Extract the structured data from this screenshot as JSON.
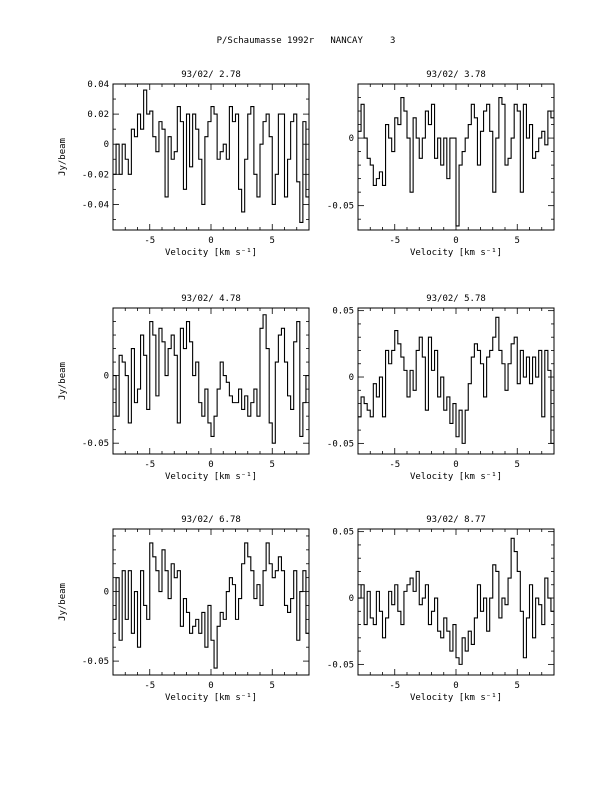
{
  "page": {
    "title": "P/Schaumasse 1992r   NANCAY     3"
  },
  "chart_data": [
    {
      "type": "line",
      "title": "93/02/ 2.78",
      "xlabel": "Velocity [km s⁻¹]",
      "ylabel": "Jy/beam",
      "xlim": [
        -8,
        8
      ],
      "ylim": [
        -0.057,
        0.04
      ],
      "xticks": [
        "-5",
        "0",
        "5"
      ],
      "yticks": [
        "0.04",
        "0.02",
        "0",
        "-0.02",
        "-0.04"
      ],
      "ytick_values": [
        0.04,
        0.02,
        0,
        -0.02,
        -0.04
      ],
      "grid": false,
      "series": [
        {
          "step": true,
          "x": [
            -8,
            -7.75,
            -7.5,
            -7.25,
            -7,
            -6.75,
            -6.5,
            -6.25,
            -6,
            -5.75,
            -5.5,
            -5.25,
            -5,
            -4.75,
            -4.5,
            -4.25,
            -4,
            -3.75,
            -3.5,
            -3.25,
            -3,
            -2.75,
            -2.5,
            -2.25,
            -2,
            -1.75,
            -1.5,
            -1.25,
            -1,
            -0.75,
            -0.5,
            -0.25,
            0,
            0.25,
            0.5,
            0.75,
            1,
            1.25,
            1.5,
            1.75,
            2,
            2.25,
            2.5,
            2.75,
            3,
            3.25,
            3.5,
            3.75,
            4,
            4.25,
            4.5,
            4.75,
            5,
            5.25,
            5.5,
            5.75,
            6,
            6.25,
            6.5,
            6.75,
            7,
            7.25,
            7.5,
            7.75
          ],
          "y": [
            -0.02,
            0,
            -0.02,
            0,
            -0.01,
            -0.02,
            0.01,
            0.005,
            0.02,
            0.01,
            0.036,
            0.02,
            0.022,
            0.005,
            -0.005,
            0.015,
            0.01,
            -0.035,
            0.005,
            -0.01,
            -0.005,
            0.025,
            0.015,
            -0.03,
            0.02,
            -0.015,
            0.02,
            0.01,
            -0.01,
            -0.04,
            0.005,
            0.015,
            0.025,
            0.02,
            -0.01,
            -0.005,
            0.0,
            -0.01,
            0.025,
            0.015,
            0.02,
            -0.03,
            -0.045,
            -0.01,
            0.02,
            0.025,
            -0.02,
            -0.035,
            0.0,
            0.015,
            0.02,
            0.005,
            -0.04,
            -0.02,
            0.02,
            0.02,
            -0.035,
            -0.01,
            0.015,
            0.02,
            -0.025,
            -0.052,
            0.015,
            -0.035
          ]
        }
      ]
    },
    {
      "type": "line",
      "title": "93/02/ 3.78",
      "xlabel": "Velocity [km s⁻¹]",
      "ylabel": "",
      "xlim": [
        -8,
        8
      ],
      "ylim": [
        -0.068,
        0.04
      ],
      "xticks": [
        "-5",
        "0",
        "5"
      ],
      "yticks": [
        "0",
        "-0.05"
      ],
      "ytick_values": [
        0,
        -0.05
      ],
      "grid": false,
      "series": [
        {
          "step": true,
          "x": [
            -8,
            -7.75,
            -7.5,
            -7.25,
            -7,
            -6.75,
            -6.5,
            -6.25,
            -6,
            -5.75,
            -5.5,
            -5.25,
            -5,
            -4.75,
            -4.5,
            -4.25,
            -4,
            -3.75,
            -3.5,
            -3.25,
            -3,
            -2.75,
            -2.5,
            -2.25,
            -2,
            -1.75,
            -1.5,
            -1.25,
            -1,
            -0.75,
            -0.5,
            -0.25,
            0,
            0.25,
            0.5,
            0.75,
            1,
            1.25,
            1.5,
            1.75,
            2,
            2.25,
            2.5,
            2.75,
            3,
            3.25,
            3.5,
            3.75,
            4,
            4.25,
            4.5,
            4.75,
            5,
            5.25,
            5.5,
            5.75,
            6,
            6.25,
            6.5,
            6.75,
            7,
            7.25,
            7.5,
            7.75
          ],
          "y": [
            0.005,
            0.025,
            0.0,
            -0.015,
            -0.02,
            -0.035,
            -0.03,
            -0.025,
            -0.035,
            0.01,
            0.0,
            -0.01,
            0.015,
            0.01,
            0.03,
            0.02,
            0.0,
            -0.04,
            0.015,
            0.0,
            -0.015,
            0.0,
            0.02,
            0.01,
            0.025,
            -0.015,
            0.0,
            -0.02,
            0.0,
            -0.03,
            0.0,
            0.0,
            -0.065,
            -0.02,
            -0.01,
            0.0,
            0.01,
            0.025,
            0.015,
            -0.02,
            0.005,
            0.02,
            0.025,
            0.005,
            -0.04,
            0.0,
            0.03,
            0.025,
            -0.02,
            -0.015,
            0.0,
            0.025,
            0.02,
            -0.04,
            0.025,
            0.0,
            0.01,
            -0.015,
            -0.01,
            0.0,
            0.005,
            -0.005,
            0.02,
            0.015
          ]
        }
      ]
    },
    {
      "type": "line",
      "title": "93/02/ 4.78",
      "xlabel": "Velocity [km s⁻¹]",
      "ylabel": "Jy/beam",
      "xlim": [
        -8,
        8
      ],
      "ylim": [
        -0.058,
        0.05
      ],
      "xticks": [
        "-5",
        "0",
        "5"
      ],
      "yticks": [
        "0",
        "-0.05"
      ],
      "ytick_values": [
        0,
        -0.05
      ],
      "grid": false,
      "series": [
        {
          "step": true,
          "x": [
            -8,
            -7.75,
            -7.5,
            -7.25,
            -7,
            -6.75,
            -6.5,
            -6.25,
            -6,
            -5.75,
            -5.5,
            -5.25,
            -5,
            -4.75,
            -4.5,
            -4.25,
            -4,
            -3.75,
            -3.5,
            -3.25,
            -3,
            -2.75,
            -2.5,
            -2.25,
            -2,
            -1.75,
            -1.5,
            -1.25,
            -1,
            -0.75,
            -0.5,
            -0.25,
            0,
            0.25,
            0.5,
            0.75,
            1,
            1.25,
            1.5,
            1.75,
            2,
            2.25,
            2.5,
            2.75,
            3,
            3.25,
            3.5,
            3.75,
            4,
            4.25,
            4.5,
            4.75,
            5,
            5.25,
            5.5,
            5.75,
            6,
            6.25,
            6.5,
            6.75,
            7,
            7.25,
            7.5,
            7.75
          ],
          "y": [
            0.0,
            -0.03,
            0.015,
            0.01,
            0.0,
            -0.035,
            0.02,
            -0.02,
            -0.01,
            0.03,
            0.015,
            -0.025,
            0.04,
            0.03,
            -0.015,
            0.035,
            0.025,
            0.0,
            0.02,
            0.03,
            0.015,
            -0.035,
            0.035,
            0.02,
            0.04,
            0.025,
            0.0,
            0.01,
            -0.02,
            -0.03,
            -0.01,
            -0.035,
            -0.045,
            -0.03,
            -0.01,
            0.01,
            0.0,
            -0.005,
            -0.015,
            -0.02,
            -0.02,
            -0.01,
            -0.025,
            -0.015,
            -0.03,
            -0.02,
            -0.01,
            -0.03,
            0.035,
            0.045,
            0.02,
            -0.035,
            -0.05,
            0.01,
            0.03,
            0.035,
            0.01,
            -0.015,
            -0.025,
            0.025,
            0.04,
            -0.045,
            -0.02,
            0.0
          ]
        }
      ]
    },
    {
      "type": "line",
      "title": "93/02/ 5.78",
      "xlabel": "Velocity [km s⁻¹]",
      "ylabel": "",
      "xlim": [
        -8,
        8
      ],
      "ylim": [
        -0.058,
        0.052
      ],
      "xticks": [
        "-5",
        "0",
        "5"
      ],
      "yticks": [
        "0.05",
        "0",
        "-0.05"
      ],
      "ytick_values": [
        0.05,
        0,
        -0.05
      ],
      "grid": false,
      "series": [
        {
          "step": true,
          "x": [
            -8,
            -7.75,
            -7.5,
            -7.25,
            -7,
            -6.75,
            -6.5,
            -6.25,
            -6,
            -5.75,
            -5.5,
            -5.25,
            -5,
            -4.75,
            -4.5,
            -4.25,
            -4,
            -3.75,
            -3.5,
            -3.25,
            -3,
            -2.75,
            -2.5,
            -2.25,
            -2,
            -1.75,
            -1.5,
            -1.25,
            -1,
            -0.75,
            -0.5,
            -0.25,
            0,
            0.25,
            0.5,
            0.75,
            1,
            1.25,
            1.5,
            1.75,
            2,
            2.25,
            2.5,
            2.75,
            3,
            3.25,
            3.5,
            3.75,
            4,
            4.25,
            4.5,
            4.75,
            5,
            5.25,
            5.5,
            5.75,
            6,
            6.25,
            6.5,
            6.75,
            7,
            7.25,
            7.5,
            7.75
          ],
          "y": [
            -0.03,
            -0.015,
            -0.02,
            -0.025,
            -0.03,
            -0.005,
            -0.015,
            0.0,
            -0.03,
            0.02,
            0.01,
            0.02,
            0.035,
            0.025,
            0.015,
            0.005,
            -0.015,
            0.005,
            -0.01,
            0.02,
            0.03,
            0.015,
            -0.025,
            0.03,
            0.005,
            0.02,
            -0.015,
            0.0,
            -0.025,
            -0.015,
            -0.035,
            -0.02,
            -0.045,
            -0.025,
            -0.05,
            -0.025,
            -0.005,
            0.015,
            0.025,
            0.02,
            0.01,
            -0.015,
            0.015,
            0.02,
            0.03,
            0.045,
            0.02,
            0.01,
            -0.01,
            0.01,
            0.025,
            0.03,
            -0.005,
            0.02,
            0.0,
            0.015,
            -0.005,
            0.015,
            0.0,
            0.02,
            -0.03,
            0.02,
            0.005,
            -0.05
          ]
        }
      ]
    },
    {
      "type": "line",
      "title": "93/02/ 6.78",
      "xlabel": "Velocity [km s⁻¹]",
      "ylabel": "Jy/beam",
      "xlim": [
        -8,
        8
      ],
      "ylim": [
        -0.06,
        0.045
      ],
      "xticks": [
        "-5",
        "0",
        "5"
      ],
      "yticks": [
        "0",
        "-0.05"
      ],
      "ytick_values": [
        0,
        -0.05
      ],
      "grid": false,
      "series": [
        {
          "step": true,
          "x": [
            -8,
            -7.75,
            -7.5,
            -7.25,
            -7,
            -6.75,
            -6.5,
            -6.25,
            -6,
            -5.75,
            -5.5,
            -5.25,
            -5,
            -4.75,
            -4.5,
            -4.25,
            -4,
            -3.75,
            -3.5,
            -3.25,
            -3,
            -2.75,
            -2.5,
            -2.25,
            -2,
            -1.75,
            -1.5,
            -1.25,
            -1,
            -0.75,
            -0.5,
            -0.25,
            0,
            0.25,
            0.5,
            0.75,
            1,
            1.25,
            1.5,
            1.75,
            2,
            2.25,
            2.5,
            2.75,
            3,
            3.25,
            3.5,
            3.75,
            4,
            4.25,
            4.5,
            4.75,
            5,
            5.25,
            5.5,
            5.75,
            6,
            6.25,
            6.5,
            6.75,
            7,
            7.25,
            7.5,
            7.75
          ],
          "y": [
            -0.02,
            0.01,
            -0.035,
            0.015,
            -0.02,
            0.015,
            -0.03,
            0.0,
            -0.04,
            0.015,
            -0.01,
            -0.02,
            0.035,
            0.025,
            0.015,
            0.0,
            0.03,
            0.015,
            -0.005,
            0.02,
            0.01,
            0.015,
            -0.025,
            -0.005,
            -0.015,
            -0.03,
            -0.025,
            -0.02,
            -0.03,
            -0.015,
            -0.04,
            -0.01,
            -0.035,
            -0.055,
            -0.025,
            -0.015,
            -0.02,
            0.0,
            0.01,
            0.005,
            -0.02,
            -0.005,
            0.02,
            0.035,
            0.025,
            0.015,
            -0.005,
            0.005,
            -0.01,
            0.015,
            0.035,
            0.02,
            0.01,
            0.015,
            0.025,
            0.015,
            -0.01,
            -0.015,
            -0.005,
            0.015,
            -0.035,
            0.0,
            0.015,
            -0.03
          ]
        }
      ]
    },
    {
      "type": "line",
      "title": "93/02/ 8.77",
      "xlabel": "Velocity [km s⁻¹]",
      "ylabel": "",
      "xlim": [
        -8,
        8
      ],
      "ylim": [
        -0.058,
        0.052
      ],
      "xticks": [
        "-5",
        "0",
        "5"
      ],
      "yticks": [
        "0.05",
        "0",
        "-0.05"
      ],
      "ytick_values": [
        0.05,
        0,
        -0.05
      ],
      "grid": false,
      "series": [
        {
          "step": true,
          "x": [
            -8,
            -7.75,
            -7.5,
            -7.25,
            -7,
            -6.75,
            -6.5,
            -6.25,
            -6,
            -5.75,
            -5.5,
            -5.25,
            -5,
            -4.75,
            -4.5,
            -4.25,
            -4,
            -3.75,
            -3.5,
            -3.25,
            -3,
            -2.75,
            -2.5,
            -2.25,
            -2,
            -1.75,
            -1.5,
            -1.25,
            -1,
            -0.75,
            -0.5,
            -0.25,
            0,
            0.25,
            0.5,
            0.75,
            1,
            1.25,
            1.5,
            1.75,
            2,
            2.25,
            2.5,
            2.75,
            3,
            3.25,
            3.5,
            3.75,
            4,
            4.25,
            4.5,
            4.75,
            5,
            5.25,
            5.5,
            5.75,
            6,
            6.25,
            6.5,
            6.75,
            7,
            7.25,
            7.5,
            7.75
          ],
          "y": [
            0.0,
            0.01,
            -0.02,
            0.005,
            -0.015,
            -0.02,
            0.005,
            -0.01,
            -0.03,
            -0.015,
            0.005,
            -0.005,
            0.01,
            -0.01,
            -0.02,
            0.005,
            0.01,
            0.015,
            0.005,
            0.02,
            -0.005,
            0.0,
            0.01,
            -0.02,
            -0.01,
            0.0,
            -0.025,
            -0.03,
            -0.015,
            -0.025,
            -0.04,
            -0.02,
            -0.045,
            -0.05,
            -0.03,
            -0.04,
            -0.025,
            -0.035,
            -0.015,
            0.01,
            -0.01,
            0.0,
            -0.025,
            0.0,
            0.025,
            0.02,
            -0.015,
            0.0,
            -0.005,
            0.015,
            0.045,
            0.035,
            0.02,
            -0.01,
            -0.045,
            -0.015,
            0.01,
            -0.03,
            0.0,
            -0.005,
            -0.02,
            0.015,
            0.0,
            -0.01
          ]
        }
      ]
    }
  ]
}
